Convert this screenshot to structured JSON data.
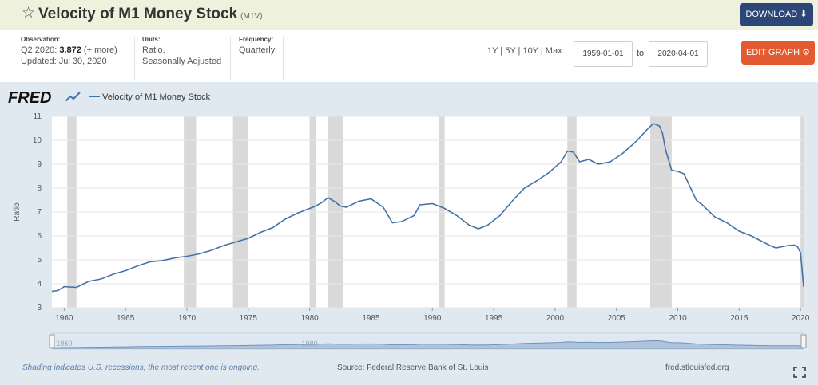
{
  "header": {
    "title": "Velocity of M1 Money Stock",
    "series_id": "(M1V)",
    "download_label": "DOWNLOAD"
  },
  "info": {
    "observation_label": "Observation:",
    "observation_period": "Q2 2020:",
    "observation_value": "3.872",
    "observation_more": "(+ more)",
    "updated": "Updated: Jul 30, 2020",
    "units_label": "Units:",
    "units_line1": "Ratio,",
    "units_line2": "Seasonally Adjusted",
    "frequency_label": "Frequency:",
    "frequency_value": "Quarterly"
  },
  "controls": {
    "ranges": "1Y | 5Y | 10Y | Max",
    "start_date": "1959-01-01",
    "to_label": "to",
    "end_date": "2020-04-01",
    "edit_label": "EDIT GRAPH"
  },
  "colors": {
    "line": "#4572a7",
    "recession": "#d9d9d9",
    "edit": "#e35b31",
    "download": "#2c4777"
  },
  "footer": {
    "shading_note": "Shading indicates U.S. recessions; the most recent one is ongoing.",
    "source": "Source: Federal Reserve Bank of St. Louis",
    "site": "fred.stlouisfed.org"
  },
  "chart_data": {
    "type": "line",
    "title": "",
    "logo": "FRED",
    "legend": [
      "Velocity of M1 Money Stock"
    ],
    "xlabel": "",
    "ylabel": "Ratio",
    "xlim": [
      1959,
      2020.25
    ],
    "ylim": [
      3,
      11
    ],
    "x_ticks": [
      1960,
      1965,
      1970,
      1975,
      1980,
      1985,
      1990,
      1995,
      2000,
      2005,
      2010,
      2015,
      2020
    ],
    "y_ticks": [
      3,
      4,
      5,
      6,
      7,
      8,
      9,
      10,
      11
    ],
    "navigator_labels": [
      "1960",
      "1980"
    ],
    "grid": true,
    "recessions": [
      [
        1960.25,
        1961.0
      ],
      [
        1969.75,
        1970.75
      ],
      [
        1973.75,
        1975.0
      ],
      [
        1980.0,
        1980.5
      ],
      [
        1981.5,
        1982.75
      ],
      [
        1990.5,
        1991.0
      ],
      [
        2001.0,
        2001.75
      ],
      [
        2007.75,
        2009.5
      ],
      [
        2020.0,
        2020.25
      ]
    ],
    "series": [
      {
        "name": "Velocity of M1 Money Stock",
        "x": [
          1959.0,
          1959.5,
          1960.0,
          1961.0,
          1962.0,
          1963.0,
          1964.0,
          1965.0,
          1966.0,
          1967.0,
          1968.0,
          1969.0,
          1970.0,
          1971.0,
          1972.0,
          1973.0,
          1974.0,
          1975.0,
          1976.0,
          1977.0,
          1978.0,
          1979.0,
          1980.0,
          1980.5,
          1981.0,
          1981.5,
          1982.0,
          1982.5,
          1983.0,
          1984.0,
          1985.0,
          1986.0,
          1986.75,
          1987.5,
          1988.5,
          1989.0,
          1990.0,
          1991.0,
          1992.0,
          1993.0,
          1993.75,
          1994.5,
          1995.5,
          1996.5,
          1997.5,
          1998.5,
          1999.5,
          2000.5,
          2001.0,
          2001.5,
          2002.0,
          2002.75,
          2003.5,
          2004.5,
          2005.5,
          2006.5,
          2007.5,
          2008.0,
          2008.5,
          2008.75,
          2009.0,
          2009.5,
          2010.0,
          2010.5,
          2011.0,
          2011.5,
          2012.0,
          2013.0,
          2014.0,
          2015.0,
          2016.0,
          2016.75,
          2017.5,
          2018.0,
          2018.5,
          2019.0,
          2019.5,
          2019.75,
          2020.0,
          2020.25
        ],
        "values": [
          3.68,
          3.72,
          3.88,
          3.85,
          4.1,
          4.2,
          4.4,
          4.55,
          4.75,
          4.92,
          4.97,
          5.08,
          5.15,
          5.25,
          5.4,
          5.6,
          5.75,
          5.9,
          6.15,
          6.35,
          6.7,
          6.95,
          7.15,
          7.25,
          7.4,
          7.6,
          7.45,
          7.25,
          7.2,
          7.45,
          7.55,
          7.2,
          6.55,
          6.6,
          6.85,
          7.3,
          7.35,
          7.15,
          6.85,
          6.45,
          6.3,
          6.45,
          6.85,
          7.45,
          8.0,
          8.3,
          8.65,
          9.1,
          9.55,
          9.5,
          9.1,
          9.2,
          9.0,
          9.1,
          9.45,
          9.9,
          10.45,
          10.7,
          10.6,
          10.3,
          9.6,
          8.75,
          8.7,
          8.6,
          8.05,
          7.5,
          7.3,
          6.8,
          6.55,
          6.2,
          6.0,
          5.8,
          5.6,
          5.5,
          5.55,
          5.6,
          5.62,
          5.55,
          5.3,
          3.872
        ]
      }
    ]
  }
}
